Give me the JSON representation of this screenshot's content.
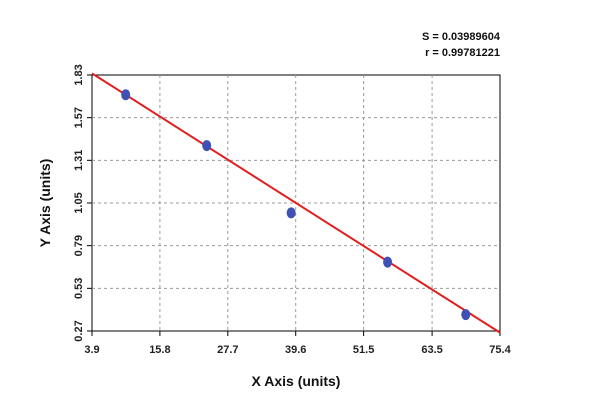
{
  "chart_data": {
    "type": "scatter",
    "xlabel": "X Axis (units)",
    "ylabel": "Y Axis (units)",
    "xlim": [
      3.9,
      75.4
    ],
    "ylim": [
      0.27,
      1.83
    ],
    "x_ticks": [
      "3.9",
      "15.8",
      "27.7",
      "39.6",
      "51.5",
      "63.5",
      "75.4"
    ],
    "y_ticks": [
      "0.27",
      "0.53",
      "0.79",
      "1.05",
      "1.31",
      "1.57",
      "1.83"
    ],
    "grid": true,
    "series": [
      {
        "points": [
          {
            "x": 9.8,
            "y": 1.71
          },
          {
            "x": 24.0,
            "y": 1.4
          },
          {
            "x": 38.8,
            "y": 0.99
          },
          {
            "x": 55.7,
            "y": 0.69
          },
          {
            "x": 69.4,
            "y": 0.37
          }
        ],
        "color": "#3f51b5"
      }
    ],
    "fit_line": {
      "x": [
        3.9,
        75.4
      ],
      "y": [
        1.84,
        0.26
      ],
      "color": "#e02020"
    },
    "annotations": {
      "s_label": "S = 0.03989604",
      "r_label": "r = 0.99781221"
    }
  }
}
